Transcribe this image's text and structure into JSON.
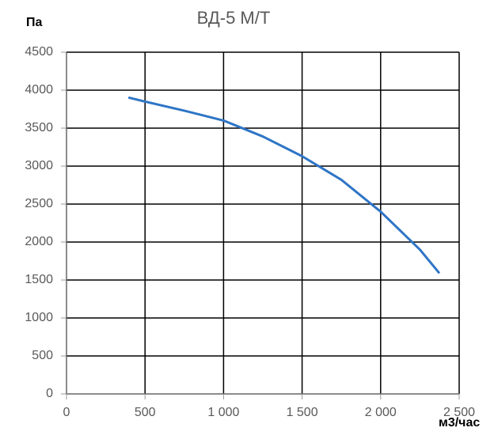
{
  "chart_data": {
    "type": "line",
    "title": "ВД-5 М/Т",
    "y_label": "Па",
    "x_label": "м3/час",
    "x": [
      400,
      500,
      750,
      1000,
      1250,
      1500,
      1750,
      2000,
      2250,
      2370
    ],
    "series": [
      {
        "color": "#2e75c6",
        "values": [
          3900,
          3850,
          3730,
          3600,
          3390,
          3130,
          2820,
          2400,
          1900,
          1600
        ]
      }
    ],
    "xlim": [
      0,
      2500
    ],
    "xticks": [
      0,
      500,
      {
        "value": 1000,
        "label": "1 000"
      },
      {
        "value": 1500,
        "label": "1 500"
      },
      {
        "value": 2000,
        "label": "2 000"
      },
      {
        "value": 2500,
        "label": "2 500"
      }
    ],
    "ylim": [
      0,
      4500
    ],
    "yticks": [
      0,
      500,
      1000,
      1500,
      2000,
      2500,
      3000,
      3500,
      4000,
      4500
    ],
    "grid": true
  }
}
